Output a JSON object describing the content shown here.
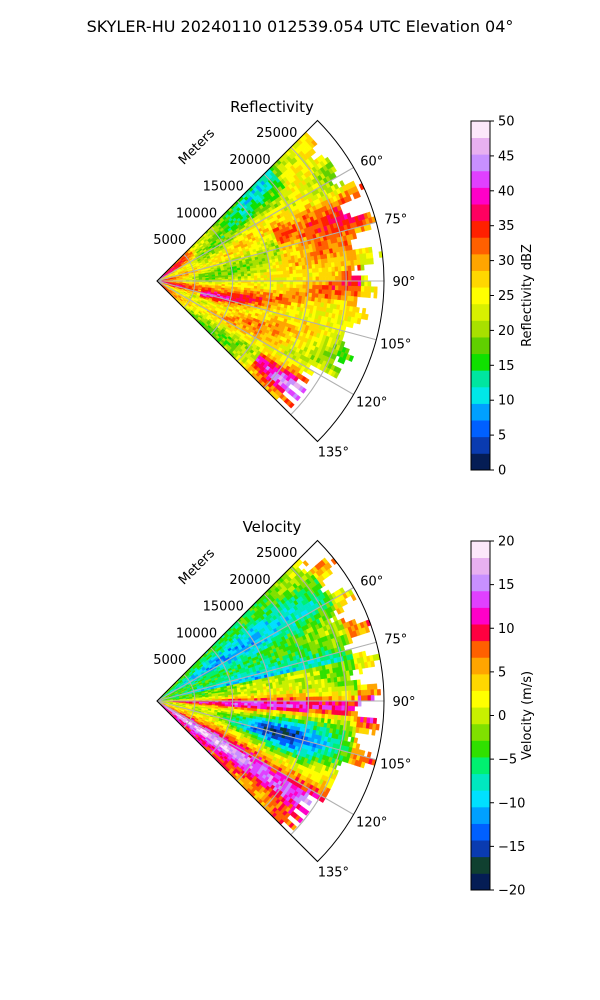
{
  "figure_title": "SKYLER-HU  20240110  012539.054 UTC Elevation 04°",
  "chart_data": [
    {
      "type": "heatmap",
      "subtype": "polar-sector (PPI radar)",
      "title": "Reflectivity",
      "range_label": "Meters",
      "range_ticks": [
        "5000",
        "10000",
        "15000",
        "20000",
        "25000"
      ],
      "range_tick_values": [
        5000,
        10000,
        15000,
        20000,
        25000
      ],
      "range_max": 30000,
      "azimuth_limits_deg": [
        45,
        135
      ],
      "azimuth_ticks": [
        "60°",
        "75°",
        "90°",
        "105°",
        "120°",
        "135°"
      ],
      "azimuth_tick_values": [
        60,
        75,
        90,
        105,
        120,
        135
      ],
      "grid": true,
      "colorbar": {
        "label": "Reflectivity dBZ",
        "min": 0,
        "max": 50,
        "ticks": [
          "0",
          "5",
          "10",
          "15",
          "20",
          "25",
          "30",
          "35",
          "40",
          "45",
          "50"
        ],
        "tick_values": [
          0,
          5,
          10,
          15,
          20,
          25,
          30,
          35,
          40,
          45,
          50
        ],
        "colors": [
          "#051d55",
          "#0a3bb0",
          "#0060ff",
          "#00a0ff",
          "#00e8e8",
          "#00e6a0",
          "#10e000",
          "#60d000",
          "#a8e000",
          "#d8f000",
          "#ffff00",
          "#ffd700",
          "#ffa500",
          "#ff6000",
          "#ff2000",
          "#ff0060",
          "#ff00c8",
          "#e040ff",
          "#c890ff",
          "#e8b0f0",
          "#fce8fa"
        ]
      },
      "description": "Reflectivity mostly 20–30 dBZ across sector with embedded bands of 35–42 dBZ"
    },
    {
      "type": "heatmap",
      "subtype": "polar-sector (PPI radar)",
      "title": "Velocity",
      "range_label": "Meters",
      "range_ticks": [
        "5000",
        "10000",
        "15000",
        "20000",
        "25000"
      ],
      "range_tick_values": [
        5000,
        10000,
        15000,
        20000,
        25000
      ],
      "range_max": 30000,
      "azimuth_limits_deg": [
        45,
        135
      ],
      "azimuth_ticks": [
        "60°",
        "75°",
        "90°",
        "105°",
        "120°",
        "135°"
      ],
      "azimuth_tick_values": [
        60,
        75,
        90,
        105,
        120,
        135
      ],
      "grid": true,
      "colorbar": {
        "label": "Velocity (m/s)",
        "min": -20,
        "max": 20,
        "ticks": [
          "−20",
          "−15",
          "−10",
          "−5",
          "0",
          "5",
          "10",
          "15",
          "20"
        ],
        "tick_values": [
          -20,
          -15,
          -10,
          -5,
          0,
          5,
          10,
          15,
          20
        ],
        "colors": [
          "#051d55",
          "#104030",
          "#0a3bb0",
          "#0060ff",
          "#00a0ff",
          "#00e0ff",
          "#00e8c0",
          "#00f070",
          "#30e000",
          "#80e000",
          "#c8f000",
          "#ffff00",
          "#ffd700",
          "#ffa500",
          "#ff6000",
          "#ff0040",
          "#ff00c8",
          "#e040ff",
          "#c890ff",
          "#e8b0f0",
          "#fce8fa"
        ]
      },
      "description": "Velocity field with negative (-5 to -12 m/s) values to the north and positive (8–15 m/s) bands to the east and south"
    }
  ]
}
